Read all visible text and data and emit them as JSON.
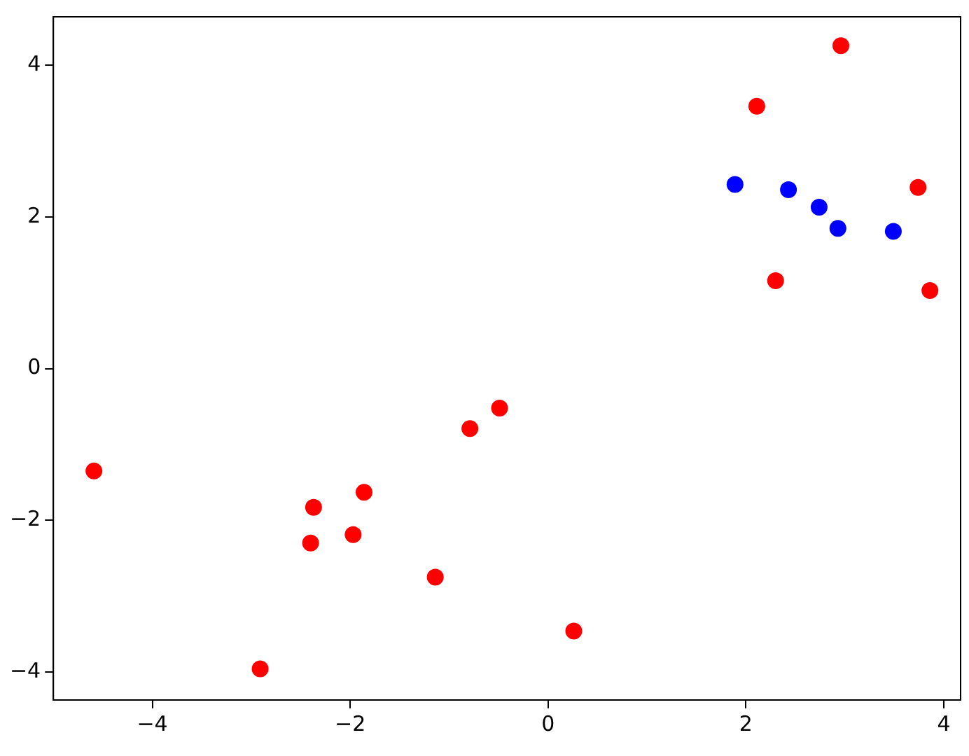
{
  "chart_data": {
    "type": "scatter",
    "marker": "circle",
    "grid": false,
    "legend": false,
    "xlim": [
      -5.0,
      4.17
    ],
    "ylim": [
      -4.37,
      4.64
    ],
    "xticks": [
      -4,
      -2,
      0,
      2,
      4
    ],
    "yticks": [
      -4,
      -2,
      0,
      2,
      4
    ],
    "series": [
      {
        "color": "#ff0000",
        "x": [
          -4.59,
          -2.91,
          -2.4,
          -2.37,
          -1.97,
          -1.86,
          -1.14,
          -0.79,
          -0.49,
          0.26,
          2.11,
          2.96,
          2.3,
          3.74,
          3.86
        ],
        "values": [
          -1.35,
          -3.96,
          -2.3,
          -1.83,
          -2.19,
          -1.63,
          -2.75,
          -0.79,
          -0.52,
          -3.46,
          3.46,
          4.26,
          1.16,
          2.39,
          1.03
        ]
      },
      {
        "color": "#0000ff",
        "x": [
          1.89,
          2.43,
          2.74,
          2.93,
          3.49
        ],
        "values": [
          2.43,
          2.36,
          2.13,
          1.85,
          1.81
        ]
      }
    ]
  }
}
